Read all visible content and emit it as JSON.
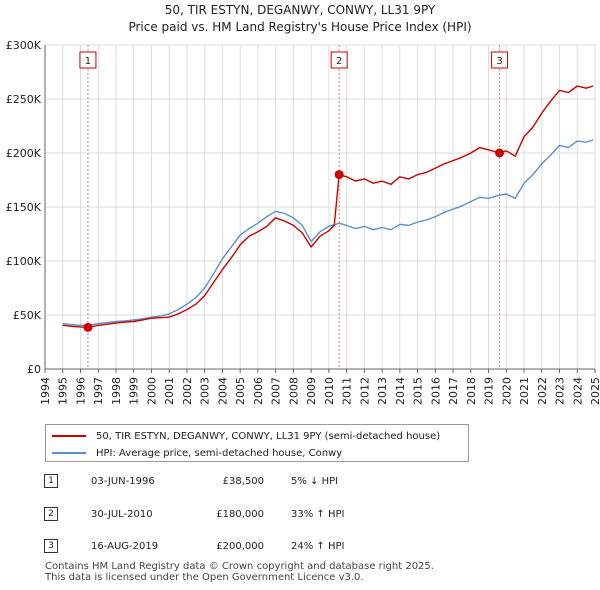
{
  "header": {
    "title_line1": "50, TIR ESTYN, DEGANWY, CONWY, LL31 9PY",
    "title_line2": "Price paid vs. HM Land Registry's House Price Index (HPI)"
  },
  "chart_data": {
    "type": "line",
    "title": "Price paid vs. HM Land Registry's House Price Index (HPI)",
    "xlabel": "",
    "ylabel": "",
    "xlim": [
      1994,
      2025
    ],
    "ylim": [
      0,
      300000
    ],
    "x_ticks": [
      1994,
      1995,
      1996,
      1997,
      1998,
      1999,
      2000,
      2001,
      2002,
      2003,
      2004,
      2005,
      2006,
      2007,
      2008,
      2009,
      2010,
      2011,
      2012,
      2013,
      2014,
      2015,
      2016,
      2017,
      2018,
      2019,
      2020,
      2021,
      2022,
      2023,
      2024,
      2025
    ],
    "y_ticks": [
      {
        "value": 0,
        "label": "£0"
      },
      {
        "value": 50000,
        "label": "£50K"
      },
      {
        "value": 100000,
        "label": "£100K"
      },
      {
        "value": 150000,
        "label": "£150K"
      },
      {
        "value": 200000,
        "label": "£200K"
      },
      {
        "value": 250000,
        "label": "£250K"
      },
      {
        "value": 300000,
        "label": "£300K"
      }
    ],
    "grid": true,
    "series": [
      {
        "name": "50, TIR ESTYN, DEGANWY, CONWY, LL31 9PY (semi-detached house)",
        "color": "#cc0000",
        "points": [
          [
            1995.0,
            40500
          ],
          [
            1995.5,
            39500
          ],
          [
            1996.0,
            39000
          ],
          [
            1996.42,
            38500
          ],
          [
            1997.0,
            40500
          ],
          [
            1997.5,
            41500
          ],
          [
            1998.0,
            42500
          ],
          [
            1998.5,
            43500
          ],
          [
            1999.0,
            44000
          ],
          [
            1999.5,
            45500
          ],
          [
            2000.0,
            47000
          ],
          [
            2000.5,
            47500
          ],
          [
            2001.0,
            48000
          ],
          [
            2001.5,
            51000
          ],
          [
            2002.0,
            55000
          ],
          [
            2002.5,
            60000
          ],
          [
            2003.0,
            68000
          ],
          [
            2003.5,
            80000
          ],
          [
            2004.0,
            92000
          ],
          [
            2004.5,
            103000
          ],
          [
            2005.0,
            115000
          ],
          [
            2005.5,
            123000
          ],
          [
            2006.0,
            127000
          ],
          [
            2006.5,
            132000
          ],
          [
            2007.0,
            140000
          ],
          [
            2007.5,
            137000
          ],
          [
            2008.0,
            133000
          ],
          [
            2008.5,
            126000
          ],
          [
            2009.0,
            113000
          ],
          [
            2009.5,
            123000
          ],
          [
            2010.0,
            128000
          ],
          [
            2010.3,
            133000
          ],
          [
            2010.58,
            180000
          ],
          [
            2011.0,
            178000
          ],
          [
            2011.5,
            174000
          ],
          [
            2012.0,
            176000
          ],
          [
            2012.5,
            172000
          ],
          [
            2013.0,
            174000
          ],
          [
            2013.5,
            171000
          ],
          [
            2014.0,
            178000
          ],
          [
            2014.5,
            176000
          ],
          [
            2015.0,
            180000
          ],
          [
            2015.5,
            182000
          ],
          [
            2016.0,
            186000
          ],
          [
            2016.5,
            190000
          ],
          [
            2017.0,
            193000
          ],
          [
            2017.5,
            196000
          ],
          [
            2018.0,
            200000
          ],
          [
            2018.5,
            205000
          ],
          [
            2019.0,
            203000
          ],
          [
            2019.62,
            200000
          ],
          [
            2020.0,
            202000
          ],
          [
            2020.5,
            197000
          ],
          [
            2021.0,
            215000
          ],
          [
            2021.5,
            224000
          ],
          [
            2022.0,
            237000
          ],
          [
            2022.5,
            248000
          ],
          [
            2023.0,
            258000
          ],
          [
            2023.5,
            256000
          ],
          [
            2024.0,
            262000
          ],
          [
            2024.5,
            260000
          ],
          [
            2024.9,
            262000
          ]
        ]
      },
      {
        "name": "HPI: Average price, semi-detached house, Conwy",
        "color": "#5b8fd0",
        "points": [
          [
            1995.0,
            42000
          ],
          [
            1995.5,
            41000
          ],
          [
            1996.0,
            40500
          ],
          [
            1996.42,
            40500
          ],
          [
            1997.0,
            42000
          ],
          [
            1997.5,
            43000
          ],
          [
            1998.0,
            44000
          ],
          [
            1998.5,
            44500
          ],
          [
            1999.0,
            45500
          ],
          [
            1999.5,
            46500
          ],
          [
            2000.0,
            48000
          ],
          [
            2000.5,
            49000
          ],
          [
            2001.0,
            51000
          ],
          [
            2001.5,
            55000
          ],
          [
            2002.0,
            60000
          ],
          [
            2002.5,
            66000
          ],
          [
            2003.0,
            75000
          ],
          [
            2003.5,
            88000
          ],
          [
            2004.0,
            102000
          ],
          [
            2004.5,
            113000
          ],
          [
            2005.0,
            124000
          ],
          [
            2005.5,
            130000
          ],
          [
            2006.0,
            135000
          ],
          [
            2006.5,
            141000
          ],
          [
            2007.0,
            146000
          ],
          [
            2007.5,
            144000
          ],
          [
            2008.0,
            140000
          ],
          [
            2008.5,
            133000
          ],
          [
            2009.0,
            118000
          ],
          [
            2009.5,
            127000
          ],
          [
            2010.0,
            132000
          ],
          [
            2010.58,
            135000
          ],
          [
            2011.0,
            133000
          ],
          [
            2011.5,
            130000
          ],
          [
            2012.0,
            132000
          ],
          [
            2012.5,
            129000
          ],
          [
            2013.0,
            131000
          ],
          [
            2013.5,
            129000
          ],
          [
            2014.0,
            134000
          ],
          [
            2014.5,
            133000
          ],
          [
            2015.0,
            136000
          ],
          [
            2015.5,
            138000
          ],
          [
            2016.0,
            141000
          ],
          [
            2016.5,
            145000
          ],
          [
            2017.0,
            148000
          ],
          [
            2017.5,
            151000
          ],
          [
            2018.0,
            155000
          ],
          [
            2018.5,
            159000
          ],
          [
            2019.0,
            158000
          ],
          [
            2019.62,
            161000
          ],
          [
            2020.0,
            162000
          ],
          [
            2020.5,
            158000
          ],
          [
            2021.0,
            172000
          ],
          [
            2021.5,
            180000
          ],
          [
            2022.0,
            190000
          ],
          [
            2022.5,
            198000
          ],
          [
            2023.0,
            207000
          ],
          [
            2023.5,
            205000
          ],
          [
            2024.0,
            211000
          ],
          [
            2024.5,
            210000
          ],
          [
            2024.9,
            212000
          ]
        ]
      }
    ],
    "sale_markers": [
      {
        "label": "1",
        "x": 1996.42,
        "y": 38500
      },
      {
        "label": "2",
        "x": 2010.58,
        "y": 180000
      },
      {
        "label": "3",
        "x": 2019.62,
        "y": 200000
      }
    ]
  },
  "legend": {
    "items": [
      {
        "label": "50, TIR ESTYN, DEGANWY, CONWY, LL31 9PY (semi-detached house)",
        "color": "#cc0000"
      },
      {
        "label": "HPI: Average price, semi-detached house, Conwy",
        "color": "#5b8fd0"
      }
    ]
  },
  "sales": [
    {
      "num": "1",
      "date": "03-JUN-1996",
      "price": "£38,500",
      "hpi": "5% ↓ HPI"
    },
    {
      "num": "2",
      "date": "30-JUL-2010",
      "price": "£180,000",
      "hpi": "33% ↑ HPI"
    },
    {
      "num": "3",
      "date": "16-AUG-2019",
      "price": "£200,000",
      "hpi": "24% ↑ HPI"
    }
  ],
  "footer": {
    "line1": "Contains HM Land Registry data © Crown copyright and database right 2025.",
    "line2": "This data is licensed under the Open Government Licence v3.0."
  }
}
